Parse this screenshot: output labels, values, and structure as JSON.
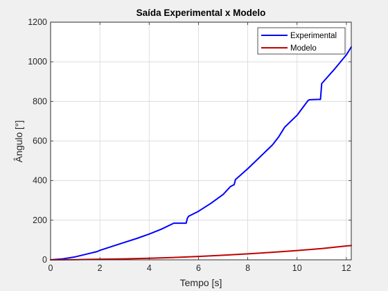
{
  "chart_data": {
    "type": "line",
    "title": "Saída Experimental x Modelo",
    "xlabel": "Tempo [s]",
    "ylabel": "Ângulo [°]",
    "xlim": [
      0,
      12.2
    ],
    "ylim": [
      0,
      1200
    ],
    "x_ticks": [
      0,
      2,
      4,
      6,
      8,
      10,
      12
    ],
    "y_ticks": [
      0,
      200,
      400,
      600,
      800,
      1000,
      1200
    ],
    "grid": true,
    "legend_position": "top-right",
    "series": [
      {
        "name": "Experimental",
        "color": "#0000ff",
        "x": [
          0,
          0.5,
          1.0,
          1.5,
          1.9,
          2.0,
          2.5,
          3.0,
          3.5,
          4.0,
          4.5,
          5.0,
          5.3,
          5.5,
          5.55,
          5.6,
          6.0,
          6.5,
          7.0,
          7.3,
          7.45,
          7.5,
          8.0,
          8.5,
          9.0,
          9.25,
          9.3,
          9.5,
          10.0,
          10.45,
          10.5,
          10.8,
          10.95,
          11.0,
          11.5,
          12.0,
          12.2
        ],
        "y": [
          0,
          5,
          15,
          30,
          42,
          48,
          68,
          88,
          108,
          130,
          155,
          185,
          185,
          185,
          210,
          220,
          245,
          285,
          330,
          370,
          380,
          405,
          460,
          520,
          580,
          620,
          630,
          670,
          730,
          805,
          808,
          810,
          810,
          890,
          960,
          1035,
          1075
        ]
      },
      {
        "name": "Modelo",
        "color": "#c00000",
        "x": [
          0,
          1,
          2,
          3,
          4,
          5,
          6,
          7,
          8,
          9,
          10,
          11,
          12,
          12.2
        ],
        "y": [
          0,
          1,
          3,
          5,
          8,
          12,
          17,
          23,
          30,
          38,
          47,
          57,
          70,
          72
        ]
      }
    ]
  }
}
